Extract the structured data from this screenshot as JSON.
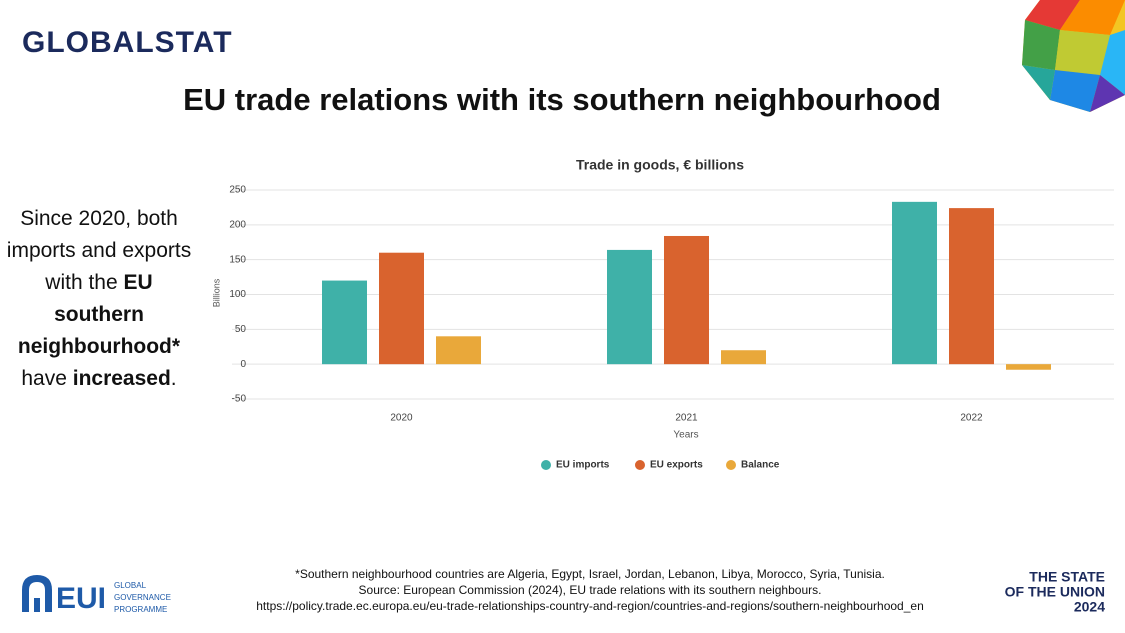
{
  "header": {
    "logo": "GLOBALSTAT",
    "title": "EU trade relations with its southern neighbourhood"
  },
  "sidebar": {
    "parts": [
      {
        "text": "Since 2020, both imports and exports with the ",
        "bold": false
      },
      {
        "text": "EU southern neighbourhood*",
        "bold": true
      },
      {
        "text": " have ",
        "bold": false
      },
      {
        "text": "increased",
        "bold": true
      },
      {
        "text": ".",
        "bold": false
      }
    ]
  },
  "chart_data": {
    "type": "bar",
    "title": "Trade in goods, € billions",
    "x_label": "Years",
    "y_label": "Billions",
    "categories": [
      "2020",
      "2021",
      "2022"
    ],
    "series": [
      {
        "name": "EU imports",
        "color": "#3fb1a8",
        "values": [
          120,
          164,
          233
        ]
      },
      {
        "name": "EU exports",
        "color": "#d9632e",
        "values": [
          160,
          184,
          224
        ]
      },
      {
        "name": "Balance",
        "color": "#e9a83a",
        "values": [
          40,
          20,
          -8
        ]
      }
    ],
    "ylim": [
      -50,
      250
    ],
    "yticks": [
      -50,
      0,
      50,
      100,
      150,
      200,
      250
    ],
    "grid": true,
    "legend": "bottom"
  },
  "footer": {
    "note": "*Southern neighbourhood countries are Algeria, Egypt, Israel, Jordan, Lebanon, Libya, Morocco, Syria, Tunisia.",
    "source": "Source: European Commission (2024), EU trade relations with its southern neighbours.",
    "url": "https://policy.trade.ec.europa.eu/eu-trade-relationships-country-and-region/countries-and-regions/southern-neighbourhood_en",
    "eui_logo": "EUI",
    "eui_programme": [
      "GLOBAL",
      "GOVERNANCE",
      "PROGRAMME"
    ],
    "brand": [
      "THE STATE",
      "OF THE UNION",
      "2024"
    ]
  }
}
